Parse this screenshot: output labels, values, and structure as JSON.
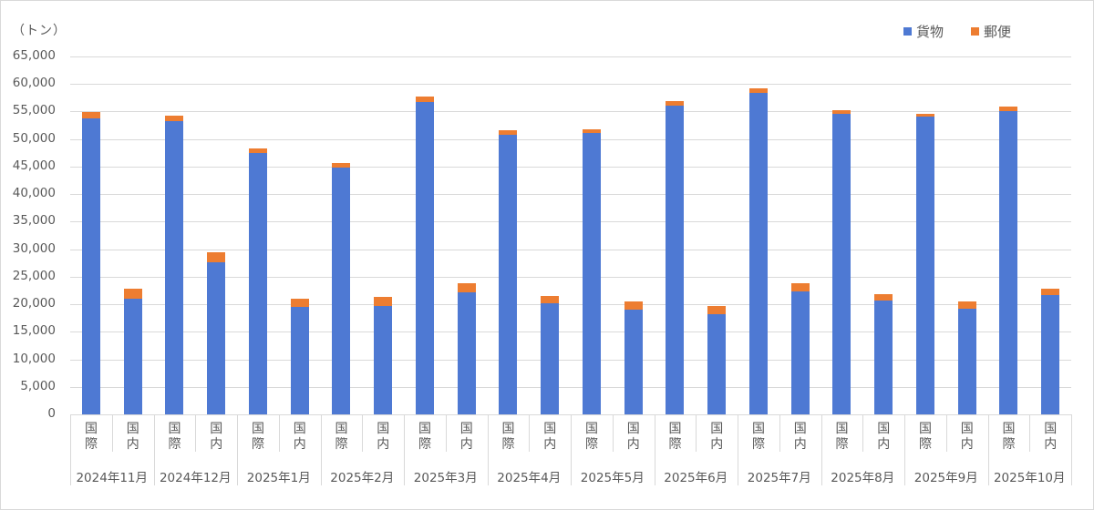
{
  "chart_data": {
    "type": "bar",
    "stacked": true,
    "title": "",
    "ylabel": "（トン）",
    "xlabel": "",
    "ylim": [
      0,
      65000
    ],
    "yticks": [
      0,
      5000,
      10000,
      15000,
      20000,
      25000,
      30000,
      35000,
      40000,
      45000,
      50000,
      55000,
      60000,
      65000
    ],
    "ytick_labels": [
      "0",
      "5,000",
      "10,000",
      "15,000",
      "20,000",
      "25,000",
      "30,000",
      "35,000",
      "40,000",
      "45,000",
      "50,000",
      "55,000",
      "60,000",
      "65,000"
    ],
    "grid": true,
    "legend_position": "top-right",
    "groups": [
      "2024年11月",
      "2024年12月",
      "2025年1月",
      "2025年2月",
      "2025年3月",
      "2025年4月",
      "2025年5月",
      "2025年6月",
      "2025年7月",
      "2025年8月",
      "2025年9月",
      "2025年10月"
    ],
    "subcategories": [
      "国際",
      "国内"
    ],
    "categories": [
      "2024年11月 国際",
      "2024年11月 国内",
      "2024年12月 国際",
      "2024年12月 国内",
      "2025年1月 国際",
      "2025年1月 国内",
      "2025年2月 国際",
      "2025年2月 国内",
      "2025年3月 国際",
      "2025年3月 国内",
      "2025年4月 国際",
      "2025年4月 国内",
      "2025年5月 国際",
      "2025年5月 国内",
      "2025年6月 国際",
      "2025年6月 国内",
      "2025年7月 国際",
      "2025年7月 国内",
      "2025年8月 国際",
      "2025年8月 国内",
      "2025年9月 国際",
      "2025年9月 国内",
      "2025年10月 国際",
      "2025年10月 国内"
    ],
    "series": [
      {
        "name": "貨物",
        "color": "#4e79d3",
        "values": [
          53800,
          21050,
          53200,
          27600,
          47500,
          19500,
          44900,
          19650,
          56800,
          22200,
          50850,
          20200,
          51050,
          19000,
          56000,
          18250,
          58450,
          22400,
          54500,
          20600,
          54100,
          19200,
          55000,
          21600
        ]
      },
      {
        "name": "郵便",
        "color": "#ed7d31",
        "values": [
          1100,
          1750,
          1100,
          1800,
          750,
          1550,
          750,
          1650,
          1000,
          1600,
          750,
          1250,
          750,
          1450,
          850,
          1450,
          750,
          1350,
          750,
          1200,
          500,
          1250,
          850,
          1200
        ]
      }
    ]
  },
  "legend": {
    "items": [
      {
        "label": "貨物",
        "color": "#4e79d3"
      },
      {
        "label": "郵便",
        "color": "#ed7d31"
      }
    ]
  },
  "axis": {
    "unit_label": "（トン）",
    "sub_label_intl": [
      "国",
      "際"
    ],
    "sub_label_dom": [
      "国",
      "内"
    ]
  }
}
